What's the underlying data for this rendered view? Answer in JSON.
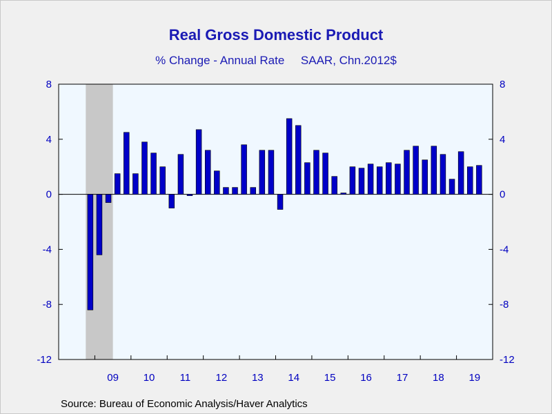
{
  "chart_data": {
    "type": "bar",
    "title": "Real Gross Domestic Product",
    "subtitle": "% Change - Annual Rate     SAAR, Chn.2012$",
    "source": "Source:  Bureau of Economic Analysis/Haver Analytics",
    "xlabel": "",
    "ylabel": "",
    "ylim": [
      -12,
      8
    ],
    "yticks": [
      8,
      4,
      0,
      -4,
      -8,
      -12
    ],
    "year_labels": [
      "09",
      "10",
      "11",
      "12",
      "13",
      "14",
      "15",
      "16",
      "17",
      "18",
      "19"
    ],
    "first_quarter": "2008Q4",
    "recession_shading": {
      "start_quarter": "2008Q4",
      "end_quarter": "2009Q2",
      "color": "#c8c8c8"
    },
    "categories": [
      "2008Q4",
      "2009Q1",
      "2009Q2",
      "2009Q3",
      "2009Q4",
      "2010Q1",
      "2010Q2",
      "2010Q3",
      "2010Q4",
      "2011Q1",
      "2011Q2",
      "2011Q3",
      "2011Q4",
      "2012Q1",
      "2012Q2",
      "2012Q3",
      "2012Q4",
      "2013Q1",
      "2013Q2",
      "2013Q3",
      "2013Q4",
      "2014Q1",
      "2014Q2",
      "2014Q3",
      "2014Q4",
      "2015Q1",
      "2015Q2",
      "2015Q3",
      "2015Q4",
      "2016Q1",
      "2016Q2",
      "2016Q3",
      "2016Q4",
      "2017Q1",
      "2017Q2",
      "2017Q3",
      "2017Q4",
      "2018Q1",
      "2018Q2",
      "2018Q3",
      "2018Q4",
      "2019Q1",
      "2019Q2",
      "2019Q3"
    ],
    "values": [
      -8.4,
      -4.4,
      -0.6,
      1.5,
      4.5,
      1.5,
      3.8,
      3.0,
      2.0,
      -1.0,
      2.9,
      -0.1,
      4.7,
      3.2,
      1.7,
      0.5,
      0.5,
      3.6,
      0.5,
      3.2,
      3.2,
      -1.1,
      5.5,
      5.0,
      2.3,
      3.2,
      3.0,
      1.3,
      0.1,
      2.0,
      1.9,
      2.2,
      2.0,
      2.3,
      2.2,
      3.2,
      3.5,
      2.5,
      3.5,
      2.9,
      1.1,
      3.1,
      2.0,
      2.1
    ],
    "colors": {
      "bar_fill": "#0000c8",
      "bar_edge": "#000000",
      "plot_bg": "#f0f8ff",
      "axis_text": "#0000c0",
      "title": "#1a1ab4"
    },
    "grid": false
  }
}
